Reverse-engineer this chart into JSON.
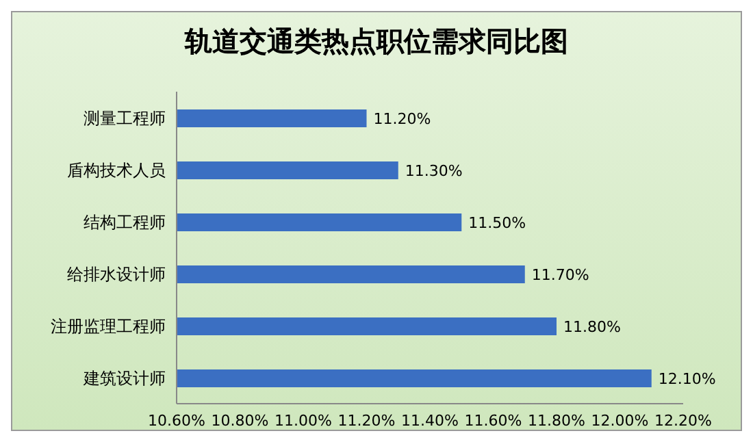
{
  "chart_data": {
    "type": "bar",
    "orientation": "horizontal",
    "title": "轨道交通类热点职位需求同比图",
    "categories": [
      "测量工程师",
      "盾构技术人员",
      "结构工程师",
      "给排水设计师",
      "注册监理工程师",
      "建筑设计师"
    ],
    "values": [
      11.2,
      11.3,
      11.5,
      11.7,
      11.8,
      12.1
    ],
    "value_labels": [
      "11.20%",
      "11.30%",
      "11.50%",
      "11.70%",
      "11.80%",
      "12.10%"
    ],
    "color": "#3b6fc2",
    "xlim": [
      10.6,
      12.2
    ],
    "xticks": [
      {
        "value": 10.6,
        "label": "10.60%"
      },
      {
        "value": 10.8,
        "label": "10.80%"
      },
      {
        "value": 11.0,
        "label": "11.00%"
      },
      {
        "value": 11.2,
        "label": "11.20%"
      },
      {
        "value": 11.4,
        "label": "11.40%"
      },
      {
        "value": 11.6,
        "label": "11.60%"
      },
      {
        "value": 11.8,
        "label": "11.80%"
      },
      {
        "value": 12.0,
        "label": "12.00%"
      },
      {
        "value": 12.2,
        "label": "12.20%"
      }
    ],
    "grid": false,
    "legend": false
  }
}
